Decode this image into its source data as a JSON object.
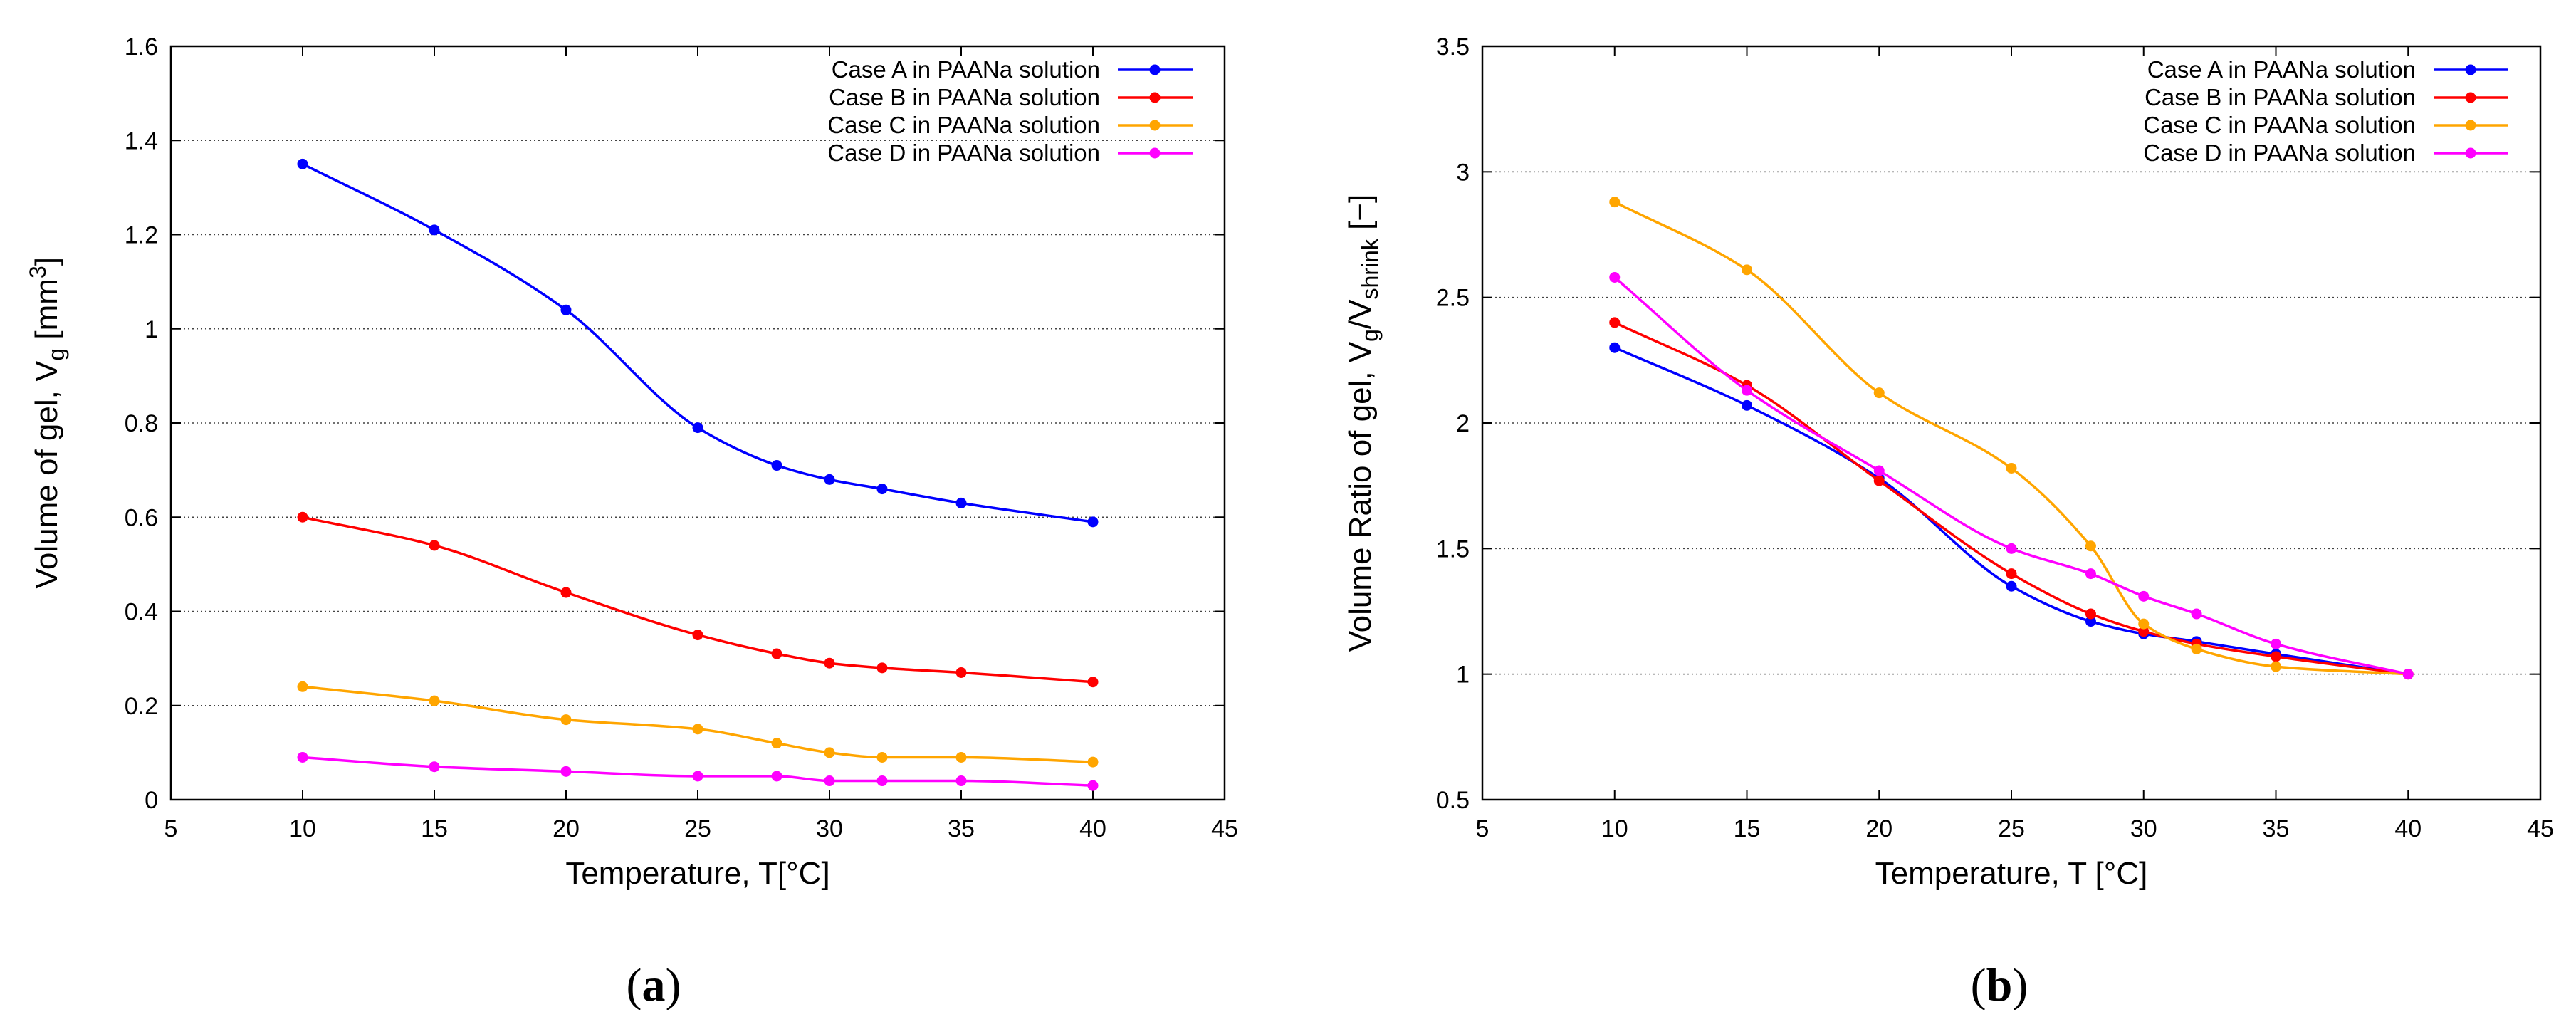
{
  "chart_data": [
    {
      "type": "line",
      "caption": "(a)",
      "xlabel": "Temperature, T[°C]",
      "ylabel": "Volume of gel, V_g [mm^3]",
      "xlim": [
        5,
        45
      ],
      "ylim": [
        0,
        1.6
      ],
      "xticks": [
        "5",
        "10",
        "15",
        "20",
        "25",
        "30",
        "35",
        "40",
        "45"
      ],
      "yticks": [
        "0",
        "0.2",
        "0.4",
        "0.6",
        "0.8",
        "1",
        "1.2",
        "1.4",
        "1.6"
      ],
      "grid": "horizontal dotted",
      "legend_position": "top-right",
      "series": [
        {
          "name": "Case A in PAANa solution",
          "color": "#0000ff",
          "x": [
            10,
            15,
            20,
            25,
            28,
            30,
            32,
            35,
            40
          ],
          "y": [
            1.35,
            1.21,
            1.04,
            0.79,
            0.71,
            0.68,
            0.66,
            0.63,
            0.59
          ]
        },
        {
          "name": "Case B in PAANa solution",
          "color": "#ff0000",
          "x": [
            10,
            15,
            20,
            25,
            28,
            30,
            32,
            35,
            40
          ],
          "y": [
            0.6,
            0.54,
            0.44,
            0.35,
            0.31,
            0.29,
            0.28,
            0.27,
            0.25
          ]
        },
        {
          "name": "Case C in PAANa solution",
          "color": "#ffa500",
          "x": [
            10,
            15,
            20,
            25,
            28,
            30,
            32,
            35,
            40
          ],
          "y": [
            0.24,
            0.21,
            0.17,
            0.15,
            0.12,
            0.1,
            0.09,
            0.09,
            0.08
          ]
        },
        {
          "name": "Case D in PAANa solution",
          "color": "#ff00ff",
          "x": [
            10,
            15,
            20,
            25,
            28,
            30,
            32,
            35,
            40
          ],
          "y": [
            0.09,
            0.07,
            0.06,
            0.05,
            0.05,
            0.04,
            0.04,
            0.04,
            0.03
          ]
        }
      ]
    },
    {
      "type": "line",
      "caption": "(b)",
      "xlabel": "Temperature, T [°C]",
      "ylabel": "Volume Ratio of gel, V_g/V_shrink [−]",
      "xlim": [
        5,
        45
      ],
      "ylim": [
        0.5,
        3.5
      ],
      "xticks": [
        "5",
        "10",
        "15",
        "20",
        "25",
        "30",
        "35",
        "40",
        "45"
      ],
      "yticks": [
        "0.5",
        "1",
        "1.5",
        "2",
        "2.5",
        "3",
        "3.5"
      ],
      "grid": "horizontal dotted",
      "legend_position": "top-right",
      "series": [
        {
          "name": "Case A in PAANa solution",
          "color": "#0000ff",
          "x": [
            10,
            15,
            20,
            25,
            28,
            30,
            32,
            35,
            40
          ],
          "y": [
            2.3,
            2.07,
            1.78,
            1.35,
            1.21,
            1.16,
            1.13,
            1.08,
            1.0
          ]
        },
        {
          "name": "Case B in PAANa solution",
          "color": "#ff0000",
          "x": [
            10,
            15,
            20,
            25,
            28,
            30,
            32,
            35,
            40
          ],
          "y": [
            2.4,
            2.15,
            1.77,
            1.4,
            1.24,
            1.17,
            1.12,
            1.07,
            1.0
          ]
        },
        {
          "name": "Case C in PAANa solution",
          "color": "#ffa500",
          "x": [
            10,
            15,
            20,
            25,
            28,
            30,
            32,
            35,
            40
          ],
          "y": [
            2.88,
            2.61,
            2.12,
            1.82,
            1.51,
            1.2,
            1.1,
            1.03,
            1.0
          ]
        },
        {
          "name": "Case D in PAANa solution",
          "color": "#ff00ff",
          "x": [
            10,
            15,
            20,
            25,
            28,
            30,
            32,
            35,
            40
          ],
          "y": [
            2.58,
            2.13,
            1.81,
            1.5,
            1.4,
            1.31,
            1.24,
            1.12,
            1.0
          ]
        }
      ]
    }
  ]
}
